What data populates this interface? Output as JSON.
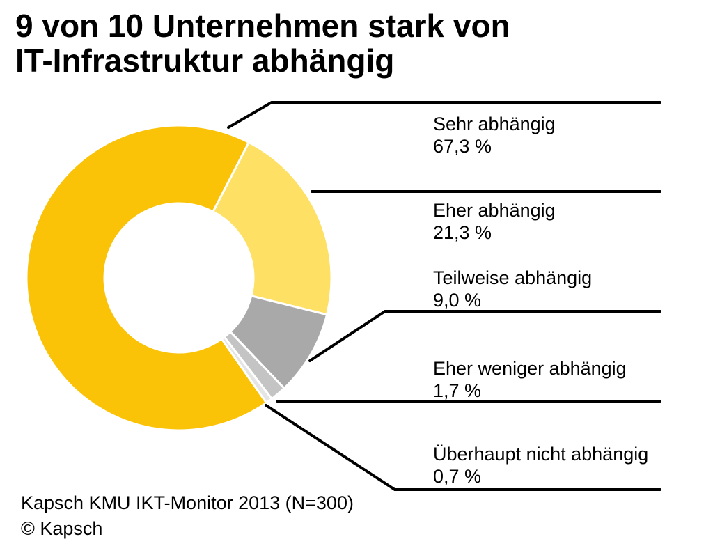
{
  "title": {
    "line1": "9 von 10 Unternehmen stark von",
    "line2": "IT-Infrastruktur abhängig"
  },
  "chart_data": {
    "type": "pie",
    "variant": "donut",
    "title": "9 von 10 Unternehmen stark von IT-Infrastruktur abhängig",
    "categories": [
      "Sehr abhängig",
      "Eher abhängig",
      "Teilweise abhängig",
      "Eher weniger abhängig",
      "Überhaupt nicht abhängig"
    ],
    "values": [
      67.3,
      21.3,
      9.0,
      1.7,
      0.7
    ],
    "value_labels": [
      "67,3 %",
      "21,3 %",
      "9,0 %",
      "1,7 %",
      "0,7 %"
    ],
    "colors": [
      "#FBC308",
      "#FDE064",
      "#A9A9A9",
      "#C4C4C4",
      "#E5E5E5"
    ],
    "segment_gap_color": "#ffffff",
    "leader_line_color": "#000000",
    "start_angle_deg": 145,
    "clockwise": true,
    "donut_hole_ratio": 0.49,
    "legend_position": "right-callouts"
  },
  "source": {
    "line1": "Kapsch KMU IKT-Monitor 2013 (N=300)",
    "line2": "© Kapsch"
  }
}
